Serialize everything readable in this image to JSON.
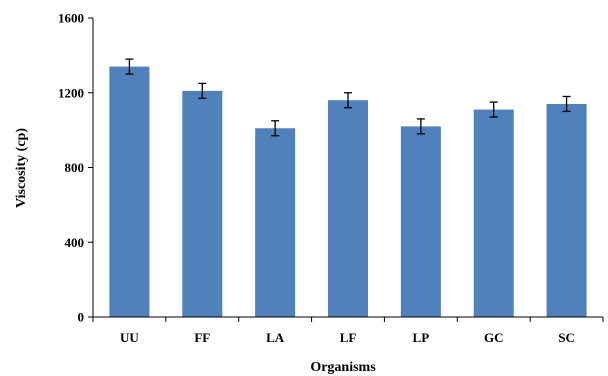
{
  "chart_data": {
    "type": "bar",
    "title": "",
    "xlabel": "Organisms",
    "ylabel": "Viscosity (cp)",
    "categories": [
      "UU",
      "FF",
      "LA",
      "LF",
      "LP",
      "GC",
      "SC"
    ],
    "values": [
      1340,
      1210,
      1010,
      1160,
      1020,
      1110,
      1140
    ],
    "errors": [
      40,
      40,
      40,
      40,
      40,
      40,
      40
    ],
    "ylim": [
      0,
      1600
    ],
    "yticks": [
      0,
      400,
      800,
      1200,
      1600
    ],
    "grid": false,
    "bar_color": "#4f81bd"
  }
}
